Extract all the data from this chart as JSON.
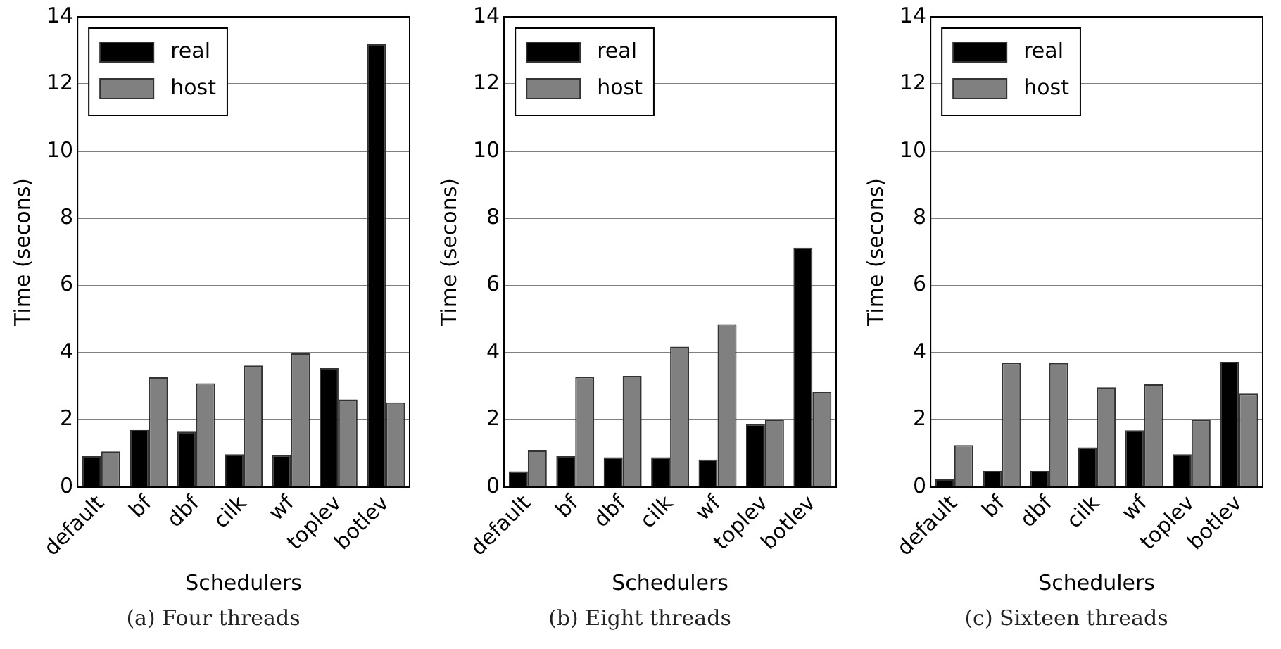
{
  "chart_data": [
    {
      "type": "bar",
      "xlabel": "Schedulers",
      "ylabel": "Time (secons)",
      "categories": [
        "default",
        "bf",
        "dbf",
        "cilk",
        "wf",
        "toplev",
        "botlev"
      ],
      "ylim": [
        0,
        14
      ],
      "yticks": [
        0,
        2,
        4,
        6,
        8,
        10,
        12,
        14
      ],
      "grid": "y",
      "legend": "top left",
      "annotations": [
        "(a) Four threads"
      ],
      "series": [
        {
          "name": "real",
          "color": "#000000",
          "values": [
            0.92,
            1.7,
            1.65,
            0.98,
            0.95,
            3.54,
            13.2
          ]
        },
        {
          "name": "host",
          "color": "#808080",
          "values": [
            1.06,
            3.27,
            3.09,
            3.62,
            3.98,
            2.61,
            2.52
          ]
        }
      ]
    },
    {
      "type": "bar",
      "xlabel": "Schedulers",
      "ylabel": "Time (secons)",
      "categories": [
        "default",
        "bf",
        "dbf",
        "cilk",
        "wf",
        "toplev",
        "botlev"
      ],
      "ylim": [
        0,
        14
      ],
      "yticks": [
        0,
        2,
        4,
        6,
        8,
        10,
        12,
        14
      ],
      "grid": "y",
      "legend": "top left",
      "annotations": [
        "(b) Eight threads"
      ],
      "series": [
        {
          "name": "real",
          "color": "#000000",
          "values": [
            0.47,
            0.92,
            0.89,
            0.89,
            0.82,
            1.87,
            7.13
          ]
        },
        {
          "name": "host",
          "color": "#808080",
          "values": [
            1.09,
            3.28,
            3.31,
            4.18,
            4.85,
            2.01,
            2.83
          ]
        }
      ]
    },
    {
      "type": "bar",
      "xlabel": "Schedulers",
      "ylabel": "Time (secons)",
      "categories": [
        "default",
        "bf",
        "dbf",
        "cilk",
        "wf",
        "toplev",
        "botlev"
      ],
      "ylim": [
        0,
        14
      ],
      "yticks": [
        0,
        2,
        4,
        6,
        8,
        10,
        12,
        14
      ],
      "grid": "y",
      "legend": "top left",
      "annotations": [
        "(c) Sixteen threads"
      ],
      "series": [
        {
          "name": "real",
          "color": "#000000",
          "values": [
            0.23,
            0.48,
            0.48,
            1.18,
            1.69,
            0.98,
            3.73
          ]
        },
        {
          "name": "host",
          "color": "#808080",
          "values": [
            1.25,
            3.7,
            3.69,
            2.97,
            3.06,
            2.0,
            2.78
          ]
        }
      ]
    }
  ]
}
